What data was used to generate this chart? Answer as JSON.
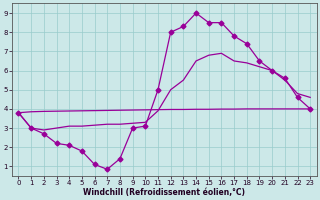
{
  "background_color": "#cce8e8",
  "grid_color": "#99cccc",
  "line_color": "#990099",
  "xlabel": "Windchill (Refroidissement éolien,°C)",
  "xlim": [
    -0.5,
    23.5
  ],
  "ylim": [
    0.5,
    9.5
  ],
  "xticks": [
    0,
    1,
    2,
    3,
    4,
    5,
    6,
    7,
    8,
    9,
    10,
    11,
    12,
    13,
    14,
    15,
    16,
    17,
    18,
    19,
    20,
    21,
    22,
    23
  ],
  "yticks": [
    1,
    2,
    3,
    4,
    5,
    6,
    7,
    8,
    9
  ],
  "line1_x": [
    0,
    1,
    2,
    3,
    4,
    5,
    6,
    7,
    8,
    9,
    10,
    11,
    12,
    13,
    14,
    15,
    16,
    17,
    18,
    19,
    20,
    21,
    22,
    23
  ],
  "line1_y": [
    3.8,
    3.0,
    2.7,
    2.2,
    2.1,
    1.8,
    1.1,
    0.85,
    1.4,
    3.0,
    3.1,
    5.0,
    8.0,
    8.3,
    9.0,
    8.5,
    8.5,
    7.8,
    7.4,
    6.5,
    6.0,
    5.6,
    4.6,
    4.0
  ],
  "line2_x": [
    0,
    1,
    2,
    3,
    4,
    5,
    6,
    7,
    8,
    9,
    10,
    11,
    12,
    13,
    14,
    15,
    16,
    17,
    18,
    19,
    20,
    21,
    22,
    23
  ],
  "line2_y": [
    3.8,
    3.85,
    3.87,
    3.88,
    3.89,
    3.9,
    3.91,
    3.92,
    3.93,
    3.94,
    3.95,
    3.96,
    3.97,
    3.97,
    3.98,
    3.98,
    3.99,
    3.99,
    4.0,
    4.0,
    4.0,
    4.0,
    4.0,
    4.0
  ],
  "line3_x": [
    0,
    1,
    2,
    3,
    4,
    5,
    6,
    7,
    8,
    9,
    10,
    11,
    12,
    13,
    14,
    15,
    16,
    17,
    18,
    19,
    20,
    21,
    22,
    23
  ],
  "line3_y": [
    3.8,
    3.0,
    2.9,
    3.0,
    3.1,
    3.1,
    3.15,
    3.2,
    3.2,
    3.25,
    3.3,
    3.9,
    5.0,
    5.5,
    6.5,
    6.8,
    6.9,
    6.5,
    6.4,
    6.2,
    6.0,
    5.5,
    4.8,
    4.6
  ],
  "marker": "D",
  "markersize": 2.5,
  "linewidth": 0.9,
  "tick_fontsize": 5.0,
  "xlabel_fontsize": 5.5
}
